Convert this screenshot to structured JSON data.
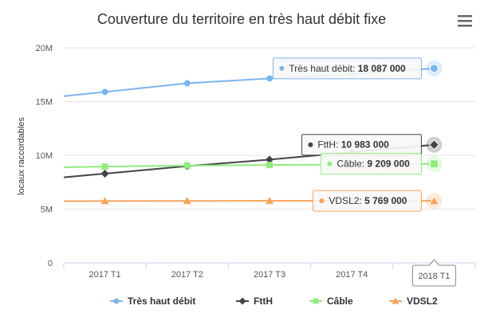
{
  "chart_data": {
    "type": "line",
    "title": "Couverture du territoire en très haut débit fixe",
    "ylabel": "locaux raccordables",
    "xlabel": "",
    "categories": [
      "2017 T1",
      "2017 T2",
      "2017 T3",
      "2017 T4",
      "2018 T1"
    ],
    "ylim": [
      0,
      20000000
    ],
    "yticks": [
      {
        "value": 0,
        "label": "0"
      },
      {
        "value": 5000000,
        "label": "5M"
      },
      {
        "value": 10000000,
        "label": "10M"
      },
      {
        "value": 15000000,
        "label": "15M"
      },
      {
        "value": 20000000,
        "label": "20M"
      }
    ],
    "grid": true,
    "legend_position": "bottom",
    "highlighted_category": "2018 T1",
    "series": [
      {
        "name": "Très haut débit",
        "color": "#7cb5ec",
        "marker": "circle",
        "values": [
          15900000,
          16700000,
          17150000,
          17550000,
          18087000
        ],
        "tooltip_value": "18 087 000"
      },
      {
        "name": "FttH",
        "color": "#434348",
        "marker": "diamond",
        "values": [
          8300000,
          9000000,
          9600000,
          10300000,
          10983000
        ],
        "tooltip_value": "10 983 000"
      },
      {
        "name": "Câble",
        "color": "#90ed7d",
        "marker": "square",
        "values": [
          8950000,
          9050000,
          9100000,
          9150000,
          9209000
        ],
        "tooltip_value": "9 209 000"
      },
      {
        "name": "VDSL2",
        "color": "#f7a35c",
        "marker": "triangle",
        "values": [
          5750000,
          5760000,
          5765000,
          5767000,
          5769000
        ],
        "tooltip_value": "5 769 000"
      }
    ]
  }
}
